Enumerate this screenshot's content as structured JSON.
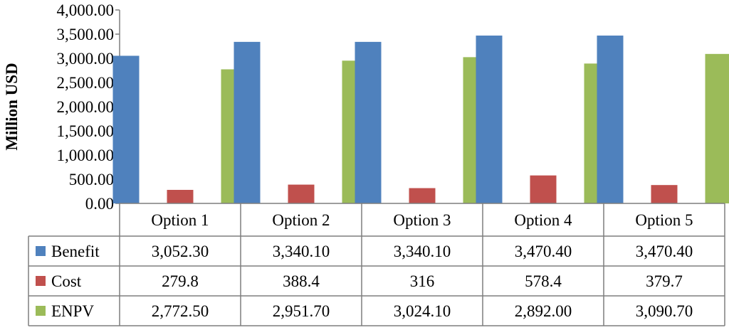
{
  "chart_data": {
    "type": "bar",
    "title": "",
    "xlabel": "",
    "ylabel": "Million USD",
    "ylim": [
      0,
      4000
    ],
    "yticks": [
      0,
      500,
      1000,
      1500,
      2000,
      2500,
      3000,
      3500,
      4000
    ],
    "ytick_labels": [
      "0.00",
      "500.00",
      "1,000.00",
      "1,500.00",
      "2,000.00",
      "2,500.00",
      "3,000.00",
      "3,500.00",
      "4,000.00"
    ],
    "categories": [
      "Option 1",
      "Option 2",
      "Option 3",
      "Option 4",
      "Option 5"
    ],
    "series": [
      {
        "name": "Benefit",
        "color": "#4F81BD",
        "values": [
          3052.3,
          3340.1,
          3340.1,
          3470.4,
          3470.4
        ],
        "labels": [
          "3,052.30",
          "3,340.10",
          "3,340.10",
          "3,470.40",
          "3,470.40"
        ]
      },
      {
        "name": "Cost",
        "color": "#C0504D",
        "values": [
          279.8,
          388.4,
          316,
          578.4,
          379.7
        ],
        "labels": [
          "279.8",
          "388.4",
          "316",
          "578.4",
          "379.7"
        ]
      },
      {
        "name": "ENPV",
        "color": "#9BBB59",
        "values": [
          2772.5,
          2951.7,
          3024.1,
          2892.0,
          3090.7
        ],
        "labels": [
          "2,772.50",
          "2,951.70",
          "3,024.10",
          "2,892.00",
          "3,090.70"
        ]
      }
    ],
    "data_table": true,
    "grid": false,
    "legend": "in data table"
  }
}
